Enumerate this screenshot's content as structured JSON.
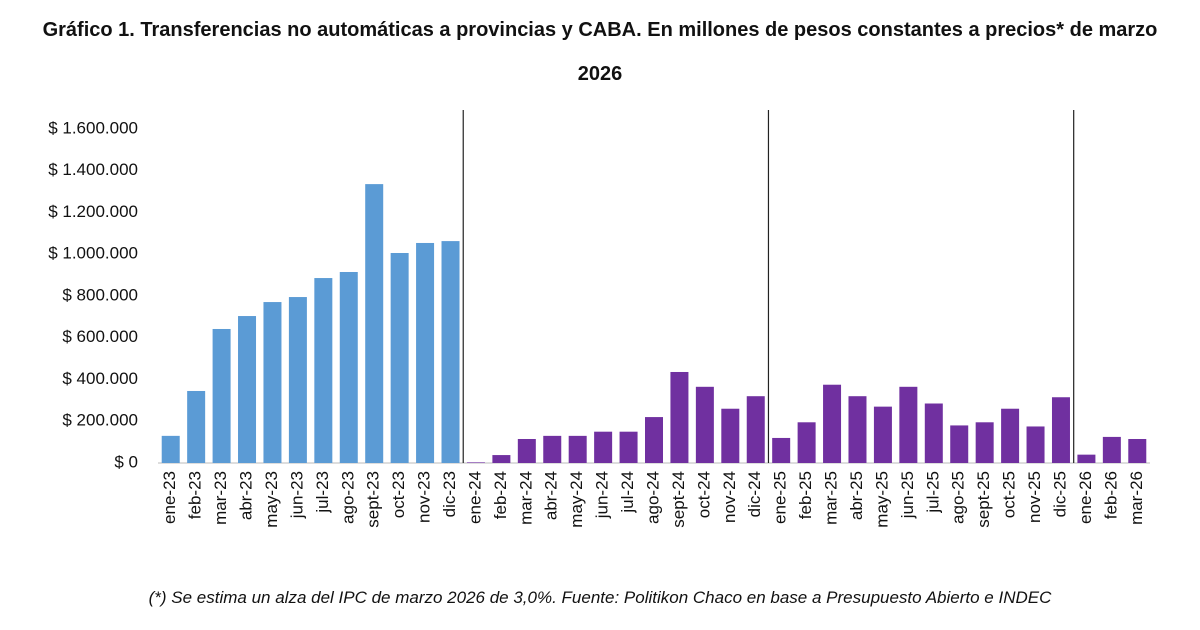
{
  "chart_data": {
    "type": "bar",
    "title": "Gráfico 1. Transferencias no automáticas a provincias y CABA. En millones de pesos constantes a precios* de marzo 2026",
    "footnote": "(*) Se estima un alza del IPC de marzo 2026 de 3,0%. Fuente: Politikon Chaco en base a Presupuesto Abierto e INDEC",
    "categories": [
      "ene-23",
      "feb-23",
      "mar-23",
      "abr-23",
      "may-23",
      "jun-23",
      "jul-23",
      "ago-23",
      "sept-23",
      "oct-23",
      "nov-23",
      "dic-23",
      "ene-24",
      "feb-24",
      "mar-24",
      "abr-24",
      "may-24",
      "jun-24",
      "jul-24",
      "ago-24",
      "sept-24",
      "oct-24",
      "nov-24",
      "dic-24",
      "ene-25",
      "feb-25",
      "mar-25",
      "abr-25",
      "may-25",
      "jun-25",
      "jul-25",
      "ago-25",
      "sept-25",
      "oct-25",
      "nov-25",
      "dic-25",
      "ene-26",
      "feb-26",
      "mar-26"
    ],
    "values": [
      130000,
      345000,
      642000,
      704000,
      771000,
      795000,
      886000,
      915000,
      1336000,
      1006000,
      1054000,
      1063000,
      3000,
      38000,
      115000,
      130000,
      130000,
      150000,
      150000,
      220000,
      436000,
      365000,
      260000,
      320000,
      120000,
      195000,
      375000,
      320000,
      270000,
      365000,
      285000,
      180000,
      195000,
      260000,
      175000,
      315000,
      40000,
      125000,
      115000
    ],
    "bar_colors": [
      "#5b9bd5",
      "#5b9bd5",
      "#5b9bd5",
      "#5b9bd5",
      "#5b9bd5",
      "#5b9bd5",
      "#5b9bd5",
      "#5b9bd5",
      "#5b9bd5",
      "#5b9bd5",
      "#5b9bd5",
      "#5b9bd5",
      "#7030a0",
      "#7030a0",
      "#7030a0",
      "#7030a0",
      "#7030a0",
      "#7030a0",
      "#7030a0",
      "#7030a0",
      "#7030a0",
      "#7030a0",
      "#7030a0",
      "#7030a0",
      "#7030a0",
      "#7030a0",
      "#7030a0",
      "#7030a0",
      "#7030a0",
      "#7030a0",
      "#7030a0",
      "#7030a0",
      "#7030a0",
      "#7030a0",
      "#7030a0",
      "#7030a0",
      "#7030a0",
      "#7030a0",
      "#7030a0"
    ],
    "ylim": [
      0,
      1600000
    ],
    "yticks": [
      {
        "value": 0,
        "label": "$ 0"
      },
      {
        "value": 200000,
        "label": "$ 200.000"
      },
      {
        "value": 400000,
        "label": "$ 400.000"
      },
      {
        "value": 600000,
        "label": "$ 600.000"
      },
      {
        "value": 800000,
        "label": "$ 800.000"
      },
      {
        "value": 1000000,
        "label": "$ 1.000.000"
      },
      {
        "value": 1200000,
        "label": "$ 1.200.000"
      },
      {
        "value": 1400000,
        "label": "$ 1.400.000"
      },
      {
        "value": 1600000,
        "label": "$ 1.600.000"
      }
    ],
    "grid": false
  }
}
